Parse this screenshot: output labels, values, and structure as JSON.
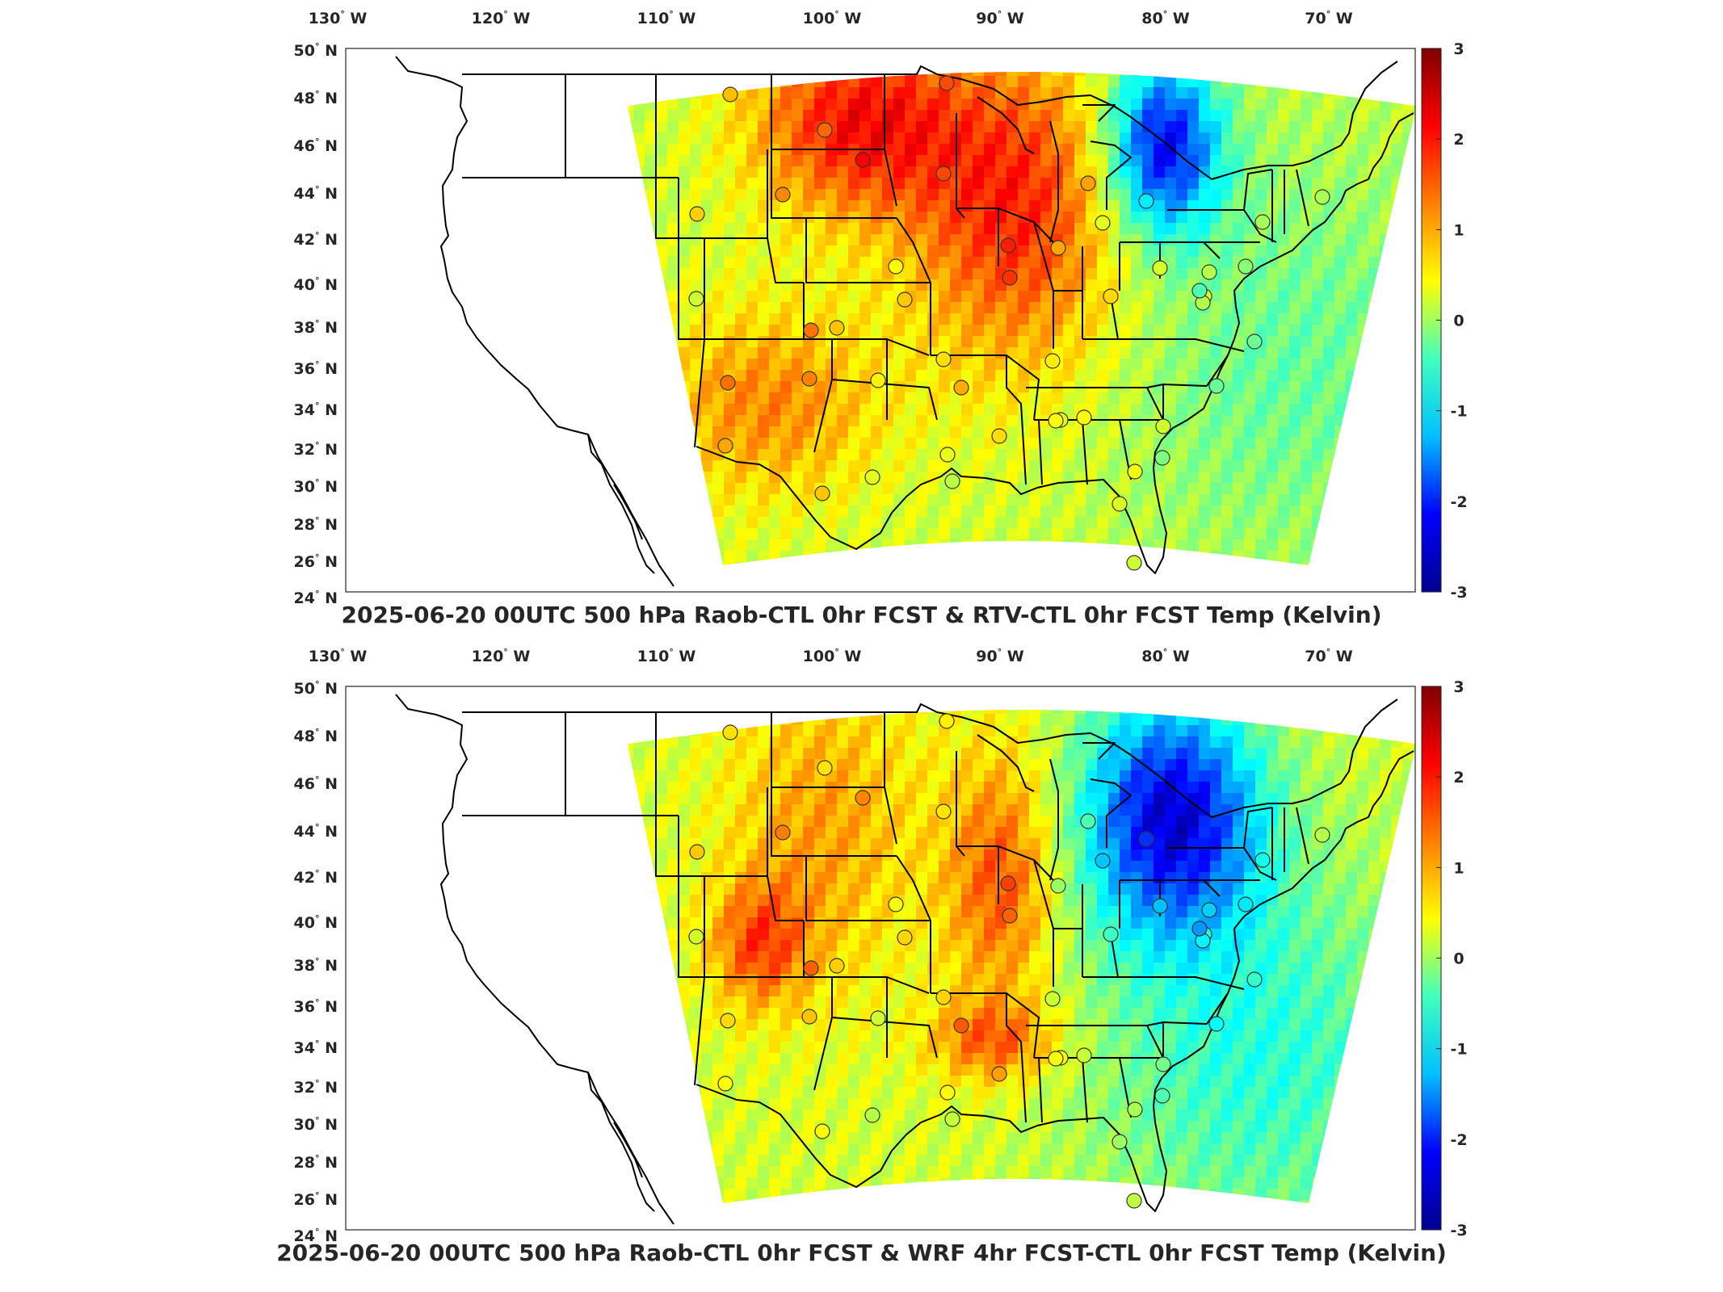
{
  "panels": [
    {
      "id": "top",
      "title": "2025-06-20 00UTC 500 hPa Raob-CTL 0hr FCST & RTV-CTL 0hr FCST Temp (Kelvin)"
    },
    {
      "id": "bottom",
      "title": "2025-06-20 00UTC 500 hPa Raob-CTL 0hr FCST & WRF 4hr FCST-CTL 0hr FCST Temp (Kelvin)"
    }
  ],
  "lon_labels": [
    {
      "deg": "130",
      "hem": "W"
    },
    {
      "deg": "120",
      "hem": "W"
    },
    {
      "deg": "110",
      "hem": "W"
    },
    {
      "deg": "100",
      "hem": "W"
    },
    {
      "deg": "90",
      "hem": "W"
    },
    {
      "deg": "80",
      "hem": "W"
    },
    {
      "deg": "70",
      "hem": "W"
    }
  ],
  "lat_labels": [
    {
      "deg": "50",
      "hem": "N"
    },
    {
      "deg": "48",
      "hem": "N"
    },
    {
      "deg": "46",
      "hem": "N"
    },
    {
      "deg": "44",
      "hem": "N"
    },
    {
      "deg": "42",
      "hem": "N"
    },
    {
      "deg": "40",
      "hem": "N"
    },
    {
      "deg": "38",
      "hem": "N"
    },
    {
      "deg": "36",
      "hem": "N"
    },
    {
      "deg": "34",
      "hem": "N"
    },
    {
      "deg": "32",
      "hem": "N"
    },
    {
      "deg": "30",
      "hem": "N"
    },
    {
      "deg": "28",
      "hem": "N"
    },
    {
      "deg": "26",
      "hem": "N"
    },
    {
      "deg": "24",
      "hem": "N"
    }
  ],
  "colorbar": {
    "ticks": [
      "3",
      "2",
      "1",
      "0",
      "-1",
      "-2",
      "-3"
    ],
    "range": [
      -3,
      3
    ],
    "colormap": "jet",
    "colors": [
      "#00008f",
      "#0000ff",
      "#00bfff",
      "#40ffbf",
      "#ffff00",
      "#ff8000",
      "#ff0000",
      "#800000"
    ]
  },
  "degree_symbol": "°"
}
